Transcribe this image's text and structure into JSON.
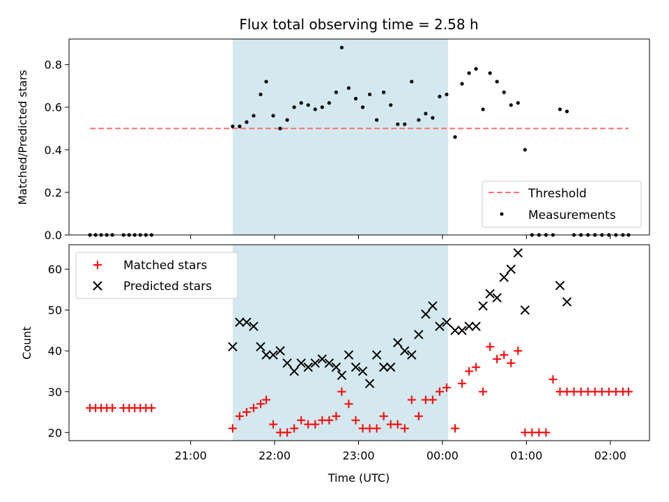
{
  "chart_data": [
    {
      "type": "scatter",
      "title": "Flux total observing time = 2.58 h",
      "ylabel": "Matched/Predicted stars",
      "xlabel": "",
      "ylim": [
        0,
        0.92
      ],
      "yticks": [
        0.0,
        0.2,
        0.4,
        0.6,
        0.8
      ],
      "ytick_labels": [
        "0.0",
        "0.2",
        "0.4",
        "0.6",
        "0.8"
      ],
      "xticks_min": [
        1260,
        1320,
        1380,
        1440,
        1500,
        1560
      ],
      "xlim_min": [
        1173,
        1588
      ],
      "shaded_region_min": [
        1290,
        1444
      ],
      "shaded_color": "#d3e9ef",
      "threshold": {
        "name": "Threshold",
        "y": 0.5,
        "x_range_min": [
          1188,
          1573
        ],
        "color": "#ff7070"
      },
      "legend": {
        "position": "lower right",
        "entries": [
          "Threshold",
          "Measurements"
        ]
      },
      "series": [
        {
          "name": "Measurements",
          "color": "#000000",
          "x_min": [
            1188,
            1192,
            1196,
            1200,
            1204,
            1212,
            1216,
            1220,
            1224,
            1228,
            1232,
            1290,
            1295,
            1300,
            1305,
            1310,
            1314,
            1319,
            1324,
            1329,
            1334,
            1339,
            1344,
            1349,
            1354,
            1359,
            1364,
            1368,
            1373,
            1378,
            1383,
            1388,
            1393,
            1398,
            1403,
            1408,
            1413,
            1418,
            1423,
            1428,
            1433,
            1438,
            1443,
            1449,
            1454,
            1459,
            1464,
            1469,
            1474,
            1479,
            1484,
            1489,
            1494,
            1499,
            1504,
            1509,
            1514,
            1519,
            1524,
            1529,
            1534,
            1539,
            1544,
            1549,
            1554,
            1559,
            1564,
            1569,
            1573
          ],
          "y": [
            0,
            0,
            0,
            0,
            0,
            0,
            0,
            0,
            0,
            0,
            0,
            0.51,
            0.51,
            0.53,
            0.56,
            0.66,
            0.72,
            0.56,
            0.5,
            0.54,
            0.6,
            0.62,
            0.61,
            0.59,
            0.6,
            0.62,
            0.67,
            0.88,
            0.69,
            0.64,
            0.6,
            0.66,
            0.54,
            0.67,
            0.61,
            0.52,
            0.52,
            0.72,
            0.54,
            0.57,
            0.55,
            0.65,
            0.66,
            0.46,
            0.71,
            0.76,
            0.78,
            0.59,
            0.76,
            0.72,
            0.67,
            0.61,
            0.62,
            0.4,
            0,
            0,
            0,
            0,
            0.59,
            0.58,
            0,
            0,
            0,
            0,
            0,
            0,
            0,
            0,
            0
          ]
        }
      ]
    },
    {
      "type": "scatter",
      "title": "",
      "ylabel": "Count",
      "xlabel": "Time (UTC)",
      "ylim": [
        18,
        66
      ],
      "yticks": [
        20,
        30,
        40,
        50,
        60
      ],
      "ytick_labels": [
        "20",
        "30",
        "40",
        "50",
        "60"
      ],
      "xticks_min": [
        1260,
        1320,
        1380,
        1440,
        1500,
        1560
      ],
      "xtick_labels": [
        "21:00",
        "22:00",
        "23:00",
        "00:00",
        "01:00",
        "02:00"
      ],
      "xlim_min": [
        1173,
        1588
      ],
      "shaded_region_min": [
        1290,
        1444
      ],
      "shaded_color": "#d3e9ef",
      "legend": {
        "position": "upper left",
        "entries": [
          "Matched stars",
          "Predicted stars"
        ]
      },
      "series": [
        {
          "name": "Matched stars",
          "marker": "+",
          "color": "#ff0000",
          "x_min": [
            1188,
            1192,
            1196,
            1200,
            1204,
            1212,
            1216,
            1220,
            1224,
            1228,
            1232,
            1290,
            1295,
            1300,
            1305,
            1310,
            1314,
            1319,
            1324,
            1329,
            1334,
            1339,
            1344,
            1349,
            1354,
            1359,
            1364,
            1368,
            1373,
            1378,
            1383,
            1388,
            1393,
            1398,
            1403,
            1408,
            1413,
            1418,
            1423,
            1428,
            1433,
            1438,
            1443,
            1449,
            1454,
            1459,
            1464,
            1469,
            1474,
            1479,
            1484,
            1489,
            1494,
            1499,
            1504,
            1509,
            1514,
            1519,
            1524,
            1529,
            1534,
            1539,
            1544,
            1549,
            1554,
            1559,
            1564,
            1569,
            1573
          ],
          "y": [
            26,
            26,
            26,
            26,
            26,
            26,
            26,
            26,
            26,
            26,
            26,
            21,
            24,
            25,
            26,
            27,
            28,
            22,
            20,
            20,
            21,
            23,
            22,
            22,
            23,
            23,
            24,
            30,
            27,
            23,
            21,
            21,
            21,
            24,
            22,
            22,
            21,
            28,
            24,
            28,
            28,
            30,
            31,
            21,
            32,
            35,
            36,
            30,
            41,
            38,
            39,
            37,
            40,
            20,
            20,
            20,
            20,
            33,
            30,
            30,
            30,
            30,
            30,
            30,
            30,
            30,
            30,
            30,
            30
          ]
        },
        {
          "name": "Predicted stars",
          "marker": "x",
          "color": "#000000",
          "x_min": [
            1290,
            1295,
            1300,
            1305,
            1310,
            1314,
            1319,
            1324,
            1329,
            1334,
            1339,
            1344,
            1349,
            1354,
            1359,
            1364,
            1368,
            1373,
            1378,
            1383,
            1388,
            1393,
            1398,
            1403,
            1408,
            1413,
            1418,
            1423,
            1428,
            1433,
            1438,
            1443,
            1449,
            1454,
            1459,
            1464,
            1469,
            1474,
            1479,
            1484,
            1489,
            1494,
            1499,
            1524,
            1529
          ],
          "y": [
            41,
            47,
            47,
            46,
            41,
            39,
            39,
            40,
            37,
            35,
            37,
            36,
            37,
            38,
            37,
            36,
            34,
            39,
            36,
            35,
            32,
            39,
            36,
            36,
            42,
            40,
            39,
            44,
            49,
            51,
            46,
            47,
            45,
            45,
            46,
            46,
            51,
            54,
            53,
            58,
            60,
            64,
            50,
            56,
            52
          ]
        }
      ]
    }
  ]
}
